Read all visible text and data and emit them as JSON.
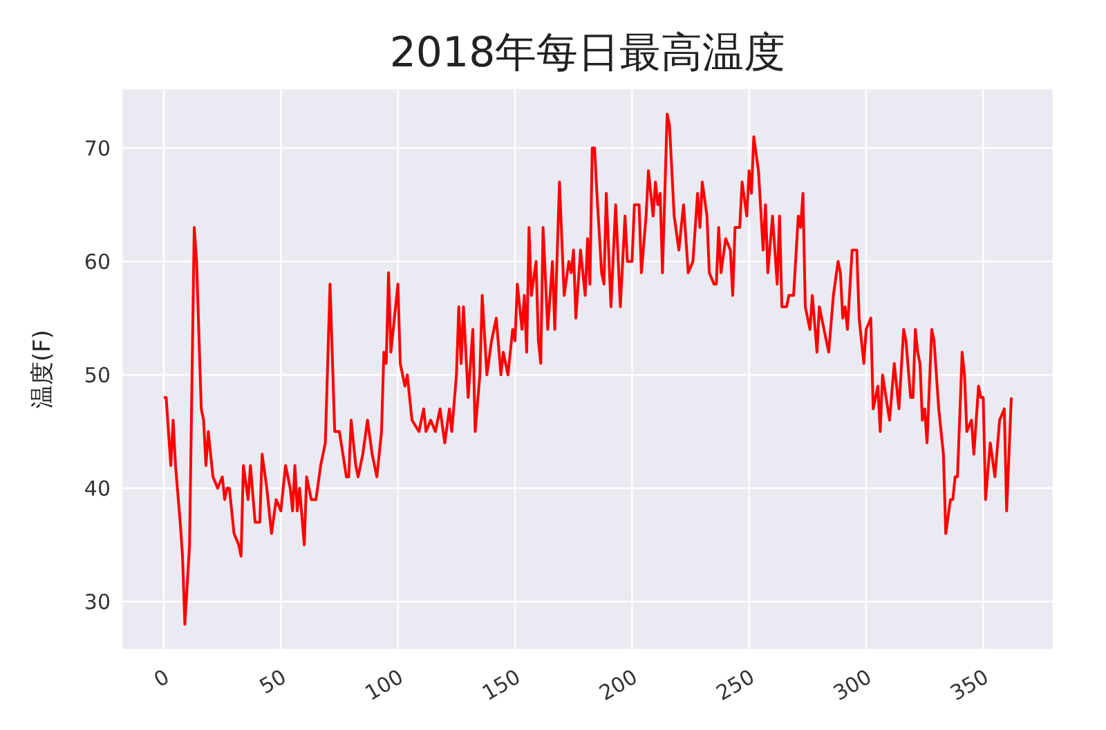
{
  "chart_data": {
    "type": "line",
    "title": "2018年每日最高温度",
    "ylabel": "温度(F)",
    "x": [
      0,
      1,
      3,
      4,
      5,
      7,
      8,
      9,
      11,
      13,
      14,
      16,
      17,
      18,
      19,
      21,
      23,
      25,
      26,
      27,
      28,
      30,
      32,
      33,
      34,
      36,
      37,
      39,
      41,
      42,
      44,
      46,
      48,
      50,
      52,
      54,
      55,
      56,
      57,
      58,
      60,
      61,
      63,
      65,
      67,
      69,
      71,
      73,
      75,
      78,
      79,
      80,
      82,
      83,
      85,
      87,
      89,
      91,
      93,
      94,
      95,
      96,
      97,
      100,
      101,
      103,
      104,
      106,
      109,
      111,
      112,
      114,
      116,
      118,
      120,
      122,
      123,
      125,
      126,
      127,
      128,
      130,
      132,
      133,
      135,
      136,
      138,
      140,
      142,
      144,
      145,
      147,
      149,
      150,
      151,
      153,
      154,
      155,
      156,
      157,
      159,
      160,
      161,
      162,
      164,
      166,
      167,
      169,
      171,
      173,
      174,
      175,
      176,
      178,
      180,
      181,
      182,
      183,
      184,
      185,
      187,
      188,
      189,
      191,
      193,
      195,
      197,
      198,
      200,
      201,
      203,
      204,
      206,
      207,
      209,
      210,
      211,
      212,
      213,
      215,
      216,
      218,
      220,
      222,
      224,
      226,
      228,
      229,
      230,
      232,
      233,
      235,
      236,
      237,
      238,
      240,
      242,
      243,
      244,
      246,
      247,
      249,
      250,
      251,
      252,
      254,
      256,
      257,
      258,
      260,
      262,
      263,
      264,
      266,
      267,
      269,
      271,
      272,
      273,
      274,
      276,
      277,
      279,
      280,
      282,
      284,
      286,
      288,
      289,
      290,
      291,
      292,
      294,
      296,
      297,
      299,
      300,
      302,
      303,
      305,
      306,
      307,
      310,
      312,
      314,
      316,
      317,
      319,
      320,
      321,
      322,
      323,
      324,
      325,
      326,
      328,
      329,
      331,
      333,
      334,
      336,
      337,
      338,
      339,
      341,
      342,
      343,
      345,
      346,
      348,
      349,
      350,
      351,
      353,
      355,
      357,
      359,
      360,
      362
    ],
    "series": [
      {
        "color": "#ff0000",
        "values": [
          48,
          48,
          42,
          46,
          42,
          37,
          34,
          28,
          35,
          63,
          60,
          47,
          46,
          42,
          45,
          41,
          40,
          41,
          39,
          40,
          40,
          36,
          35,
          34,
          42,
          39,
          42,
          37,
          37,
          43,
          40,
          36,
          39,
          38,
          42,
          40,
          38,
          42,
          38,
          40,
          35,
          41,
          39,
          39,
          42,
          44,
          58,
          45,
          45,
          41,
          41,
          46,
          42,
          41,
          43,
          46,
          43,
          41,
          45,
          52,
          51,
          59,
          52,
          58,
          51,
          49,
          50,
          46,
          45,
          47,
          45,
          46,
          45,
          47,
          44,
          47,
          45,
          50,
          56,
          51,
          56,
          48,
          54,
          45,
          50,
          57,
          50,
          53,
          55,
          50,
          52,
          50,
          54,
          53,
          58,
          54,
          57,
          52,
          63,
          57,
          60,
          53,
          51,
          63,
          54,
          60,
          54,
          67,
          57,
          60,
          59,
          61,
          55,
          61,
          57,
          62,
          58,
          70,
          70,
          66,
          59,
          58,
          66,
          56,
          65,
          56,
          64,
          60,
          60,
          65,
          65,
          59,
          64,
          68,
          64,
          67,
          65,
          66,
          59,
          73,
          72,
          64,
          61,
          65,
          59,
          60,
          66,
          63,
          67,
          64,
          59,
          58,
          58,
          63,
          59,
          62,
          61,
          57,
          63,
          63,
          67,
          64,
          68,
          66,
          71,
          68,
          61,
          65,
          59,
          64,
          58,
          64,
          56,
          56,
          57,
          57,
          64,
          63,
          66,
          56,
          54,
          57,
          52,
          56,
          54,
          52,
          57,
          60,
          59,
          55,
          56,
          54,
          61,
          61,
          55,
          51,
          54,
          55,
          47,
          49,
          45,
          50,
          46,
          51,
          47,
          54,
          53,
          48,
          48,
          54,
          52,
          51,
          46,
          47,
          44,
          54,
          53,
          47,
          43,
          36,
          39,
          39,
          41,
          41,
          52,
          50,
          45,
          46,
          43,
          49,
          48,
          48,
          39,
          44,
          41,
          46,
          47,
          38,
          48
        ]
      }
    ],
    "xlim": [
      -18,
      380
    ],
    "xticks": [
      0,
      50,
      100,
      150,
      200,
      250,
      300,
      350
    ],
    "ylim": [
      25.75,
      75.25
    ],
    "yticks": [
      30,
      40,
      50,
      60,
      70
    ],
    "grid": true,
    "marker": "none",
    "line_style": "solid"
  }
}
